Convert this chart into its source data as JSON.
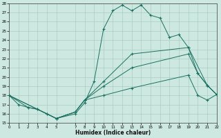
{
  "xlabel": "Humidex (Indice chaleur)",
  "xlim": [
    0,
    22
  ],
  "ylim": [
    15,
    28
  ],
  "yticks": [
    15,
    16,
    17,
    18,
    19,
    20,
    21,
    22,
    23,
    24,
    25,
    26,
    27,
    28
  ],
  "xticks": [
    0,
    1,
    2,
    3,
    4,
    5,
    7,
    8,
    9,
    10,
    11,
    12,
    13,
    14,
    15,
    16,
    17,
    18,
    19,
    20,
    21,
    22
  ],
  "bg_color": "#cce8e0",
  "grid_color": "#aaccc4",
  "line_color": "#1a7060",
  "lines": [
    {
      "x": [
        0,
        1,
        2,
        3,
        4,
        5,
        7,
        8,
        9,
        10,
        11,
        12,
        13,
        14,
        15,
        16,
        17,
        18,
        19,
        20,
        21,
        22
      ],
      "y": [
        18,
        17,
        16.7,
        16.5,
        16,
        15.5,
        16,
        17.2,
        19.5,
        25.2,
        27.2,
        27.8,
        27.2,
        27.8,
        26.7,
        26.4,
        24.3,
        24.6,
        23.2,
        20.4,
        19.1,
        18.1
      ]
    },
    {
      "x": [
        0,
        2,
        3,
        4,
        5,
        7,
        8,
        10,
        13,
        19,
        21,
        22
      ],
      "y": [
        18,
        16.7,
        16.5,
        16,
        15.5,
        16.2,
        17.5,
        19.5,
        22.5,
        23.2,
        19.1,
        18.1
      ]
    },
    {
      "x": [
        0,
        5,
        7,
        8,
        10,
        13,
        19,
        20,
        21,
        22
      ],
      "y": [
        18,
        15.5,
        16.2,
        17.5,
        19.0,
        21.0,
        22.5,
        20.4,
        19.1,
        18.1
      ]
    },
    {
      "x": [
        0,
        5,
        7,
        8,
        10,
        13,
        19,
        20,
        21,
        22
      ],
      "y": [
        18,
        15.5,
        16.2,
        17.5,
        18.0,
        18.8,
        20.2,
        18.0,
        17.5,
        18.1
      ]
    }
  ]
}
